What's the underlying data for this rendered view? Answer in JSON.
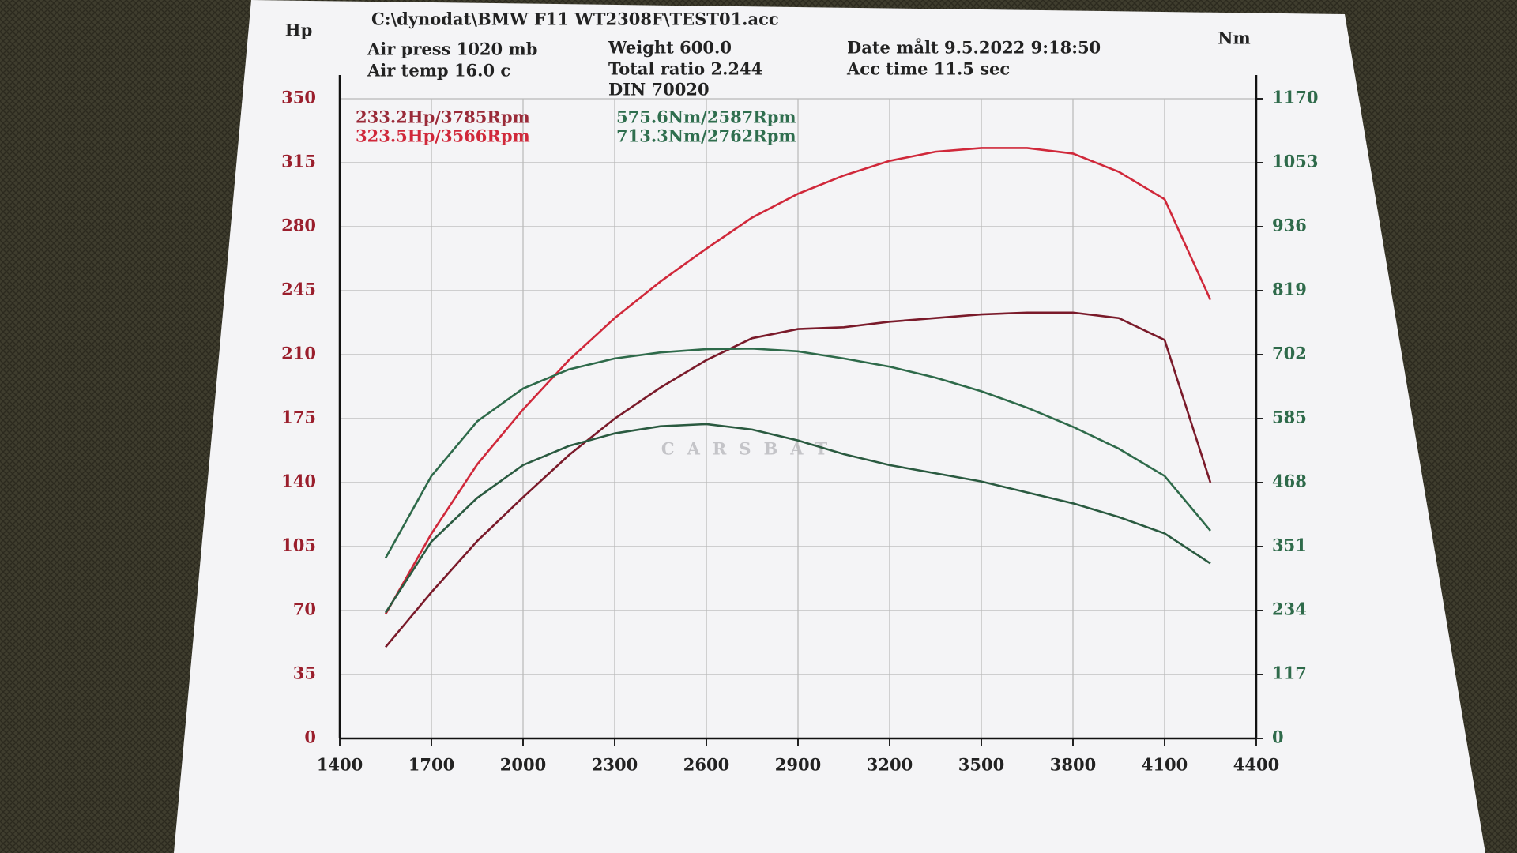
{
  "chart_data": {
    "type": "line",
    "title": "C:\\dynodat\\BMW F11 WT2308F\\TEST01.acc",
    "info": [
      "Air press  1020 mb",
      "Air temp   16.0 c",
      "Weight   600.0",
      "Total ratio 2.244",
      "DIN 70020",
      "Date målt 9.5.2022 9:18:50",
      "Acc time   11.5 sec"
    ],
    "annotations": [
      {
        "text": "233.2Hp/3785Rpm",
        "color": "#9a2a38"
      },
      {
        "text": "323.5Hp/3566Rpm",
        "color": "#d0283a"
      },
      {
        "text": "575.6Nm/2587Rpm",
        "color": "#2f6e4e"
      },
      {
        "text": "713.3Nm/2762Rpm",
        "color": "#2f6e4e"
      }
    ],
    "watermark": "CARSBAT",
    "y_label": "Hp",
    "y2_label": "Nm",
    "x": [
      1550,
      1700,
      1850,
      2000,
      2150,
      2300,
      2450,
      2600,
      2750,
      2900,
      3050,
      3200,
      3350,
      3500,
      3650,
      3800,
      3950,
      4100,
      4250
    ],
    "xlim": [
      1400,
      4400
    ],
    "xticks": [
      1400,
      1700,
      2000,
      2300,
      2600,
      2900,
      3200,
      3500,
      3800,
      4100,
      4400
    ],
    "ylim": [
      0,
      350
    ],
    "yticks": [
      0,
      35,
      70,
      105,
      140,
      175,
      210,
      245,
      280,
      315,
      350
    ],
    "y2lim": [
      0,
      1170
    ],
    "y2ticks": [
      0,
      117,
      234,
      351,
      468,
      585,
      702,
      819,
      936,
      1053,
      1170
    ],
    "grid": true,
    "series": [
      {
        "color": "#d0283a",
        "values": [
          68,
          112,
          150,
          180,
          207,
          230,
          250,
          268,
          285,
          298,
          308,
          316,
          321,
          323,
          323,
          320,
          310,
          295,
          240
        ]
      },
      {
        "color": "#7a1a2a",
        "values": [
          50,
          80,
          108,
          132,
          155,
          175,
          192,
          207,
          219,
          224,
          225,
          228,
          230,
          232,
          233,
          233,
          230,
          218,
          140
        ]
      },
      {
        "color": "#2e6a4a",
        "axis": "y2",
        "values": [
          330,
          480,
          580,
          640,
          675,
          695,
          706,
          712,
          713,
          708,
          695,
          680,
          660,
          635,
          605,
          570,
          530,
          480,
          380
        ]
      },
      {
        "color": "#2a5a40",
        "axis": "y2",
        "values": [
          230,
          360,
          440,
          500,
          535,
          558,
          571,
          575,
          565,
          545,
          520,
          500,
          485,
          470,
          450,
          430,
          405,
          375,
          320
        ]
      }
    ]
  }
}
